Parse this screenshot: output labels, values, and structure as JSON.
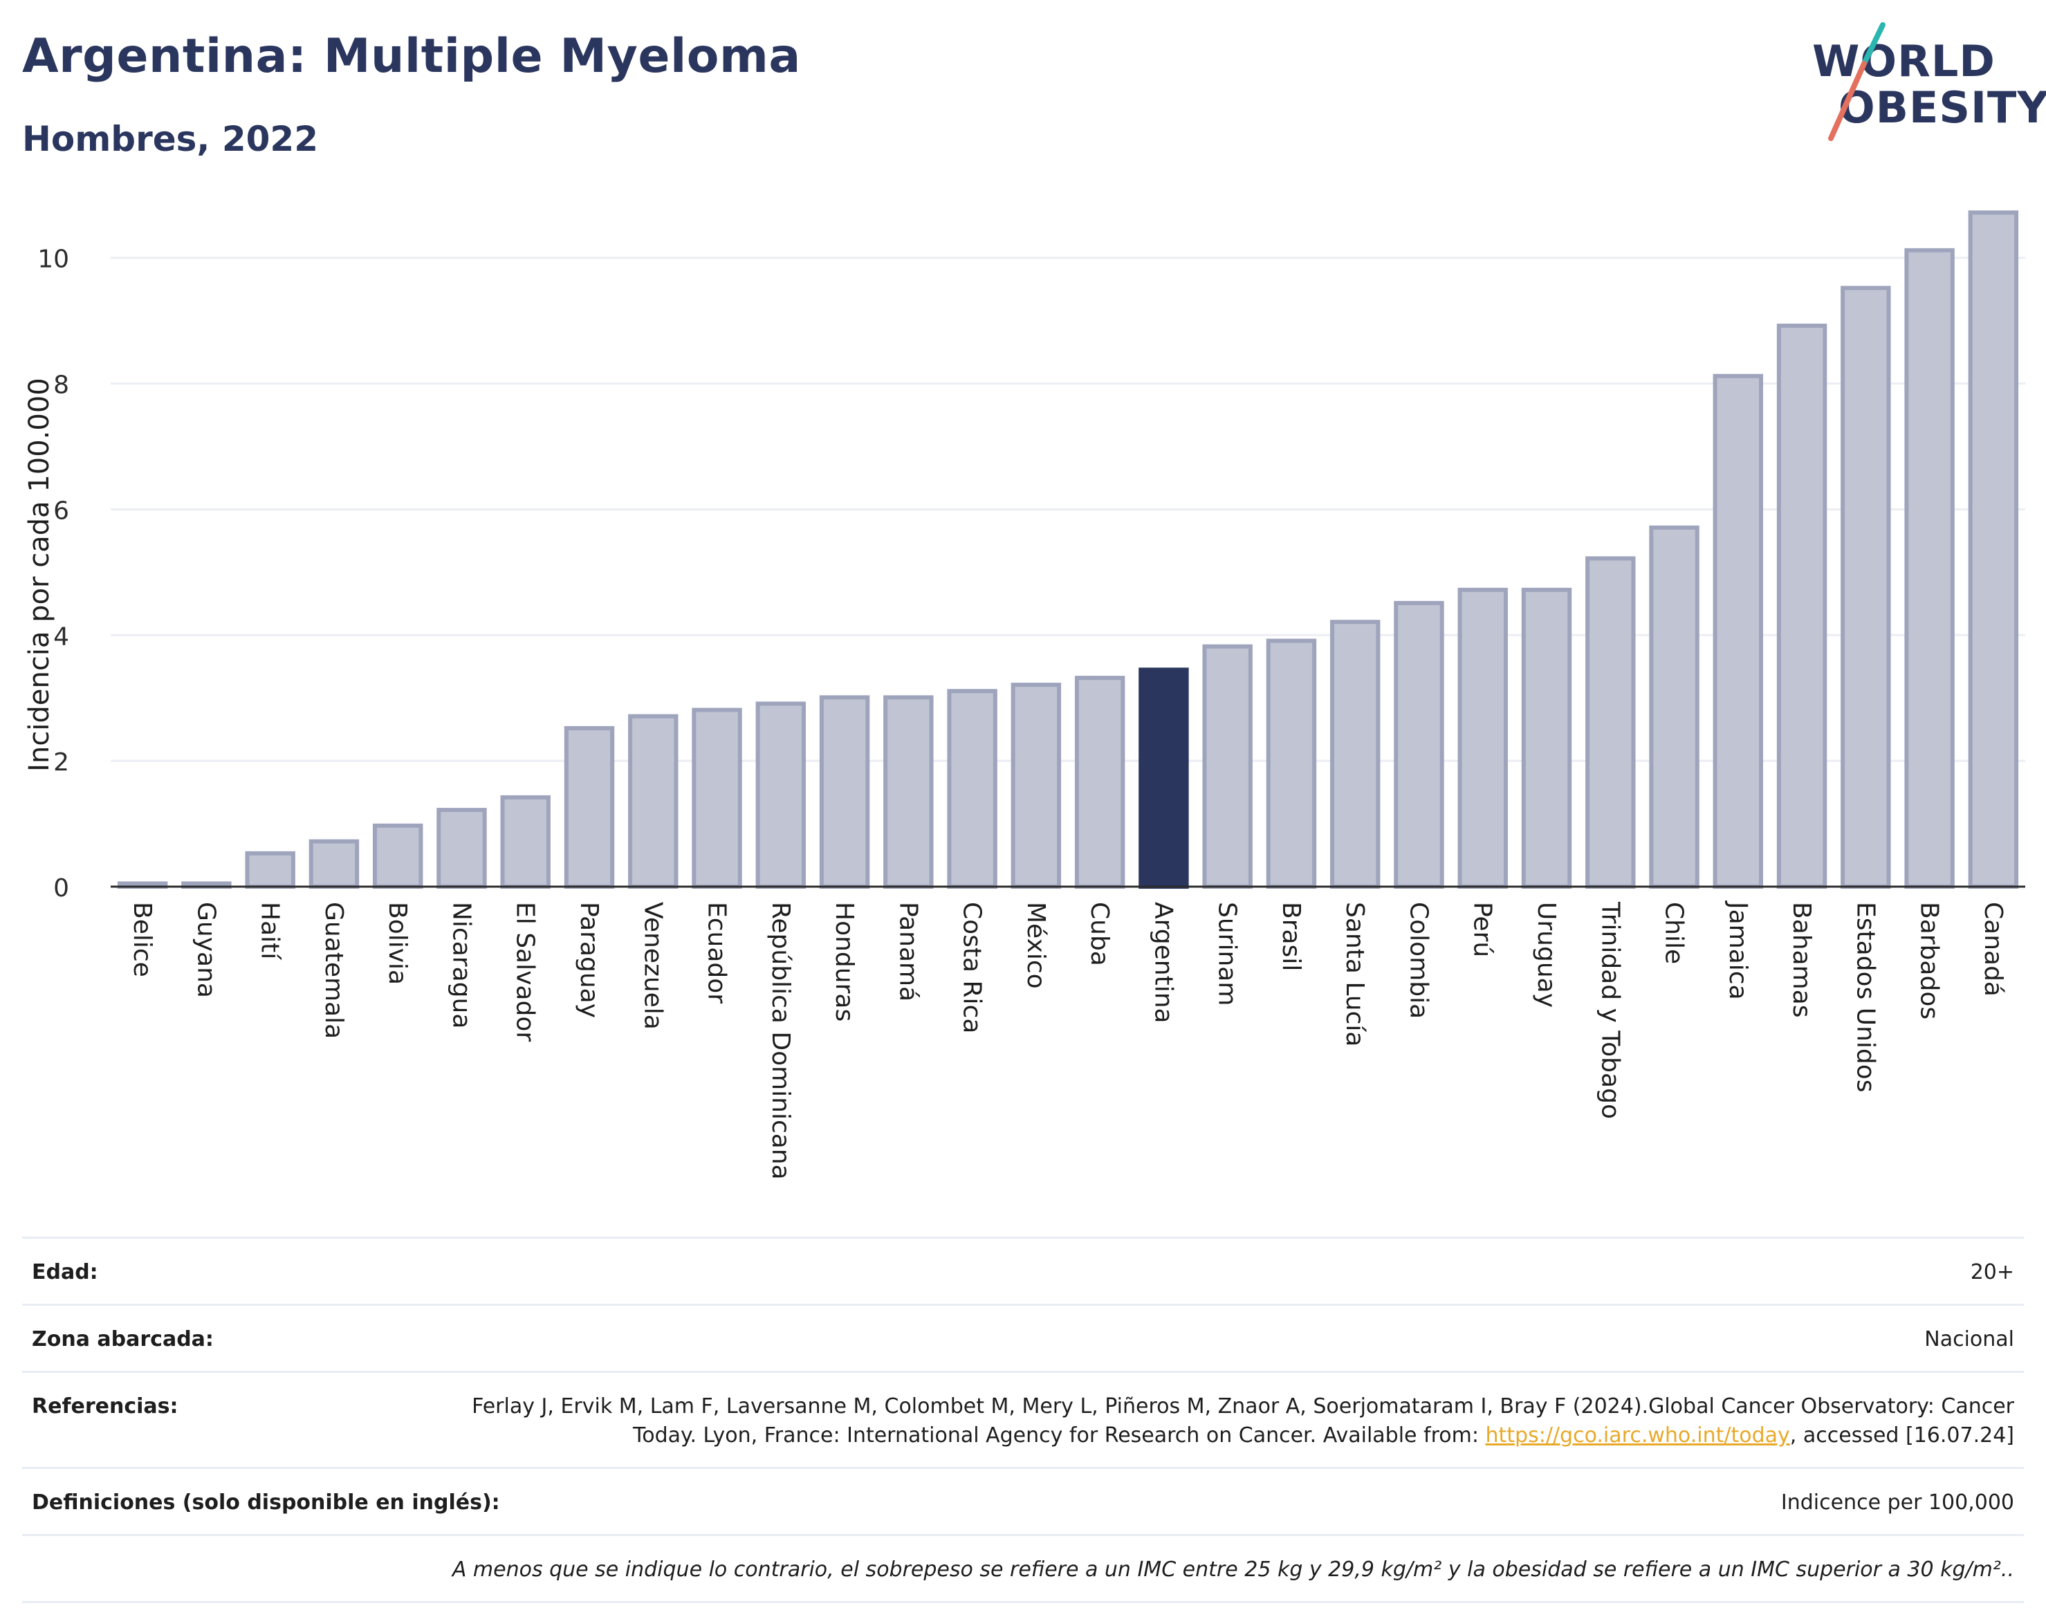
{
  "title": "Argentina: Multiple Myeloma",
  "subtitle": "Hombres, 2022",
  "logo": {
    "line1": "WORLD",
    "line2": "OBESITY",
    "slash_colors": [
      "#2bb6b0",
      "#e4705e"
    ]
  },
  "colors": {
    "bar": "#c1c4d2",
    "bar_edge": "#9fa4bd",
    "highlight": "#2b365f",
    "grid": "#eceef4",
    "axis": "#2b2b2b"
  },
  "chart_data": {
    "type": "bar",
    "categories": [
      "Belice",
      "Guyana",
      "Haití",
      "Guatemala",
      "Bolivia",
      "Nicaragua",
      "El Salvador",
      "Paraguay",
      "Venezuela",
      "Ecuador",
      "República Dominicana",
      "Honduras",
      "Panamá",
      "Costa Rica",
      "México",
      "Cuba",
      "Argentina",
      "Surinam",
      "Brasil",
      "Santa Lucía",
      "Colombia",
      "Perú",
      "Uruguay",
      "Trinidad y Tobago",
      "Chile",
      "Jamaica",
      "Bahamas",
      "Estados Unidos",
      "Barbados",
      "Canadá"
    ],
    "values": [
      0.05,
      0.05,
      0.53,
      0.72,
      0.97,
      1.22,
      1.42,
      2.52,
      2.71,
      2.81,
      2.91,
      3.01,
      3.01,
      3.11,
      3.21,
      3.32,
      3.45,
      3.82,
      3.91,
      4.21,
      4.51,
      4.72,
      4.72,
      5.22,
      5.71,
      8.12,
      8.92,
      9.52,
      10.12,
      10.72
    ],
    "highlight": "Argentina",
    "ylabel": "Incidencia por cada 100.000",
    "xlabel": "",
    "ylim": [
      0,
      10.8
    ],
    "yticks": [
      0,
      2,
      4,
      6,
      8,
      10
    ],
    "grid": true
  },
  "meta": {
    "age_label": "Edad:",
    "age_value": "20+",
    "area_label": "Zona abarcada:",
    "area_value": "Nacional",
    "ref_label": "Referencias:",
    "ref_text_1": "Ferlay J, Ervik M, Lam F, Laversanne M, Colombet M, Mery L, Piñeros M, Znaor A, Soerjomataram I, Bray F (2024).Global Cancer Observatory: Cancer Today. Lyon, France: International Agency for Research on Cancer. Available from: ",
    "ref_link": "https://gco.iarc.who.int/today",
    "ref_text_2": ", accessed [16.07.24]",
    "def_label": "Definiciones (solo disponible en inglés):",
    "def_value": "Indicence per 100,000",
    "note": "A menos que se indique lo contrario, el sobrepeso se refiere a un IMC entre 25 kg y 29,9 kg/m² y la obesidad se refiere a un IMC superior a 30 kg/m².."
  }
}
